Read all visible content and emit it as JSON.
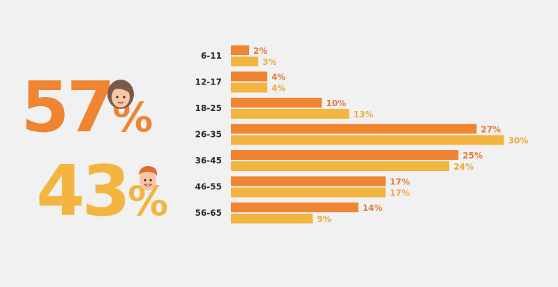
{
  "female": {
    "value": "57",
    "symbol": "%",
    "color": "#ef8533",
    "icon": "woman-face-icon"
  },
  "male": {
    "value": "43",
    "symbol": "%",
    "color": "#f3b53f",
    "icon": "man-face-icon"
  },
  "chart_data": {
    "type": "bar",
    "orientation": "horizontal",
    "categories": [
      "6-11",
      "12-17",
      "18-25",
      "26-35",
      "36-45",
      "46-55",
      "56-65"
    ],
    "series": [
      {
        "values": [
          2,
          4,
          10,
          27,
          25,
          17,
          14
        ],
        "color": "#ef8533",
        "label_color": "#e9773a"
      },
      {
        "values": [
          3,
          4,
          13,
          30,
          24,
          17,
          9
        ],
        "color": "#f3b53f",
        "label_color": "#eaa93a"
      }
    ],
    "value_suffix": "%",
    "title": "",
    "xlabel": "",
    "ylabel": "",
    "xlim": [
      0,
      30
    ],
    "grid": false,
    "legend": "none"
  }
}
